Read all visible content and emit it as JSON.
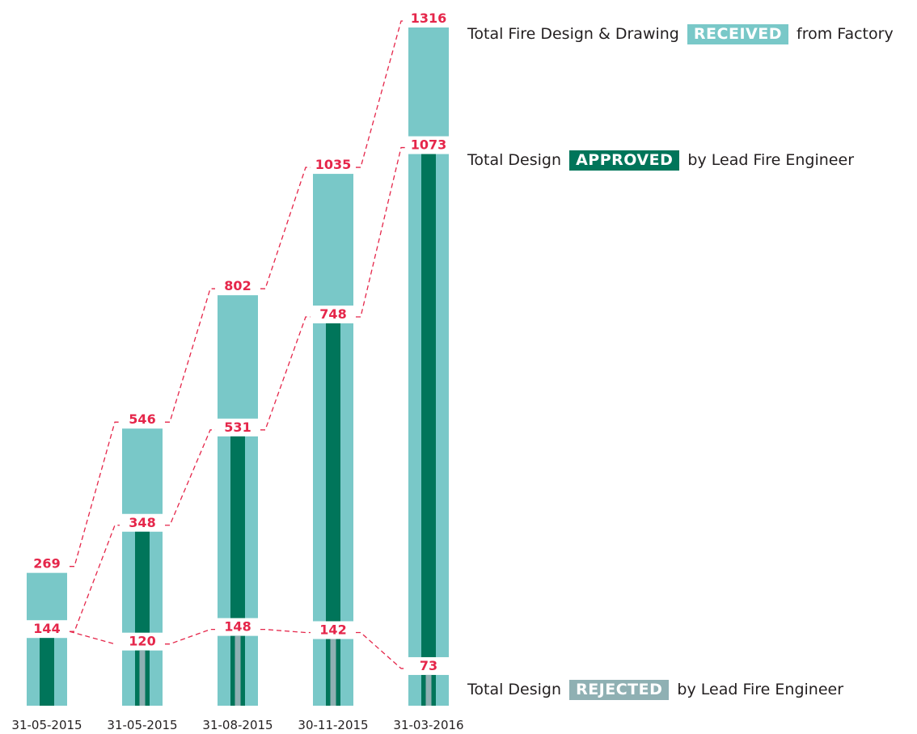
{
  "chart_data": {
    "type": "bar",
    "categories": [
      "31-05-2015",
      "31-05-2015",
      "31-08-2015",
      "30-11-2015",
      "31-03-2016"
    ],
    "series": [
      {
        "name": "RECEIVED",
        "values": [
          269,
          546,
          802,
          1035,
          1316
        ]
      },
      {
        "name": "APPROVED",
        "values": [
          144,
          348,
          531,
          748,
          1073
        ]
      },
      {
        "name": "REJECTED",
        "values": [
          null,
          120,
          148,
          142,
          73
        ]
      }
    ],
    "colors": {
      "received": "#79c8c8",
      "approved": "#00755a",
      "rejected": "#8fb0b3",
      "label": "#e5264a",
      "axis_text": "#231f20"
    },
    "legend": {
      "received": {
        "prefix": "Total Fire Design & Drawing",
        "badge": "RECEIVED",
        "suffix": "from Factory"
      },
      "approved": {
        "prefix": "Total Design",
        "badge": "APPROVED",
        "suffix": "by Lead Fire Engineer"
      },
      "rejected": {
        "prefix": "Total Design",
        "badge": "REJECTED",
        "suffix": "by Lead Fire Engineer"
      }
    }
  }
}
